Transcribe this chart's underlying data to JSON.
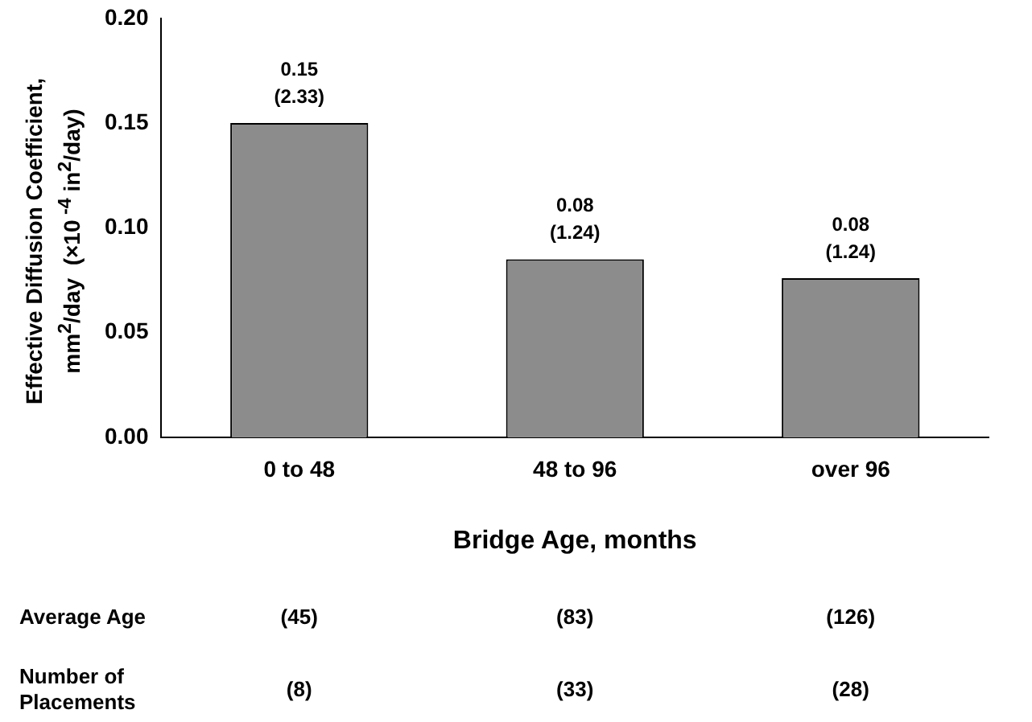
{
  "chart_data": {
    "type": "bar",
    "xlabel": "Bridge Age, months",
    "ylabel": "Effective Diffusion Coefficient,\nmm$^{2}$/day  (×10$^{ -4}$ in$^{2}$/day)",
    "categories": [
      "0 to 48",
      "48 to 96",
      "over 96"
    ],
    "values": [
      0.15,
      0.085,
      0.076
    ],
    "value_labels": [
      "0.15\n(2.33)",
      "0.08\n(1.24)",
      "0.08\n(1.24)"
    ],
    "color": "#8c8c8c",
    "ylim": [
      0,
      0.2
    ],
    "yticks": [
      {
        "value": 0,
        "label": "0.00"
      },
      {
        "value": 0.05,
        "label": "0.05"
      },
      {
        "value": 0.1,
        "label": "0.10"
      },
      {
        "value": 0.15,
        "label": "0.15"
      },
      {
        "value": 0.2,
        "label": "0.20"
      }
    ],
    "grid": false,
    "legend": false,
    "annotations": [
      "Average Age",
      "(45)",
      "(83)",
      "(126)",
      "Number of\nPlacements",
      "(8)",
      "(33)",
      "(28)"
    ]
  }
}
